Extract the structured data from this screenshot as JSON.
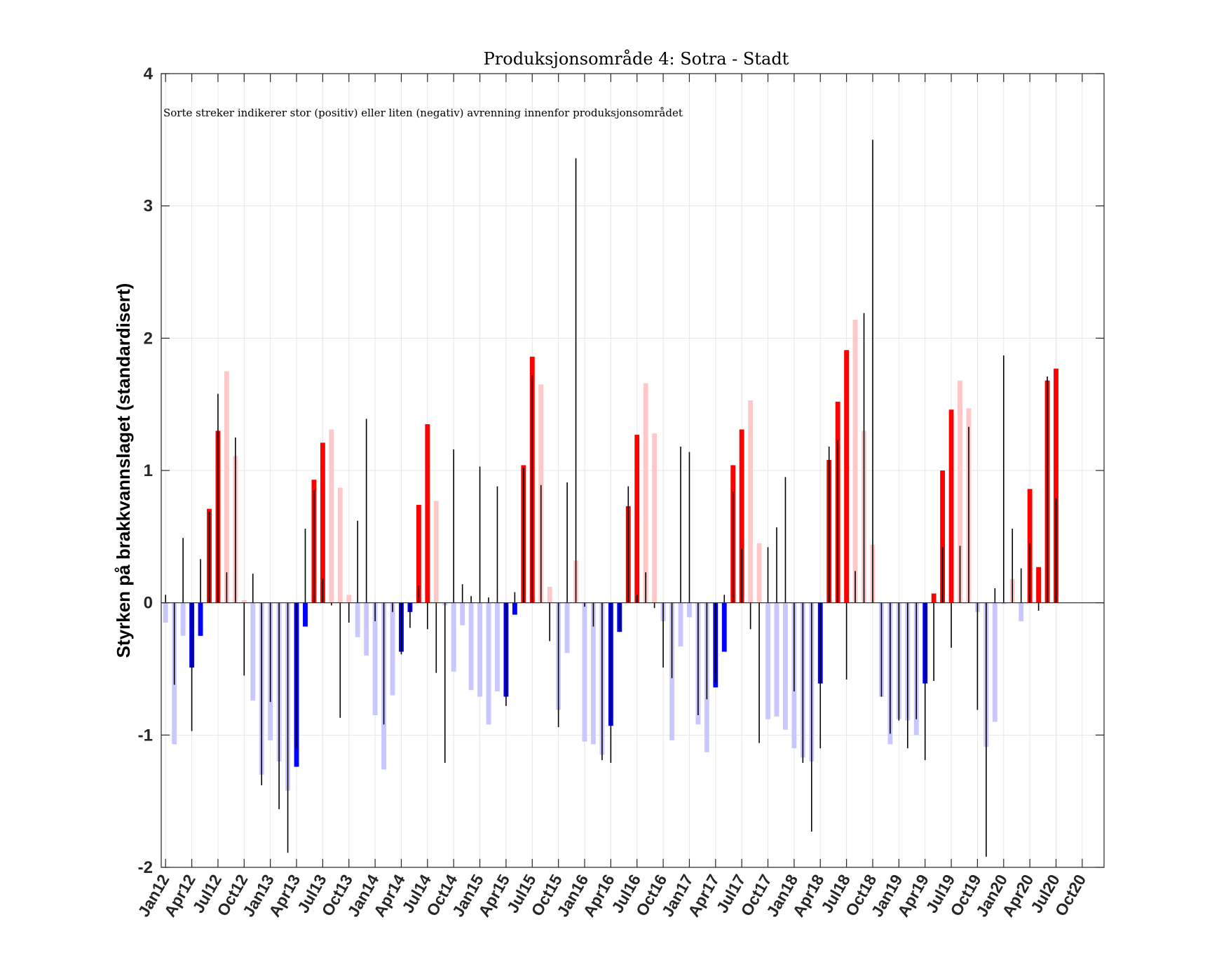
{
  "chart_data": {
    "type": "bar",
    "title": "Produksjonsområde 4: Sotra - Stadt",
    "annotation": "Sorte streker indikerer stor (positiv) eller liten (negativ) avrenning innenfor produksjonsområdet",
    "xlabel": "",
    "ylabel": "Styrken på brakkvannslaget (standardisert)",
    "ylim": [
      -2,
      4
    ],
    "yticks": [
      -2,
      -1,
      0,
      1,
      2,
      3,
      4
    ],
    "xlim_months": [
      -0.5,
      107.5
    ],
    "tick_labels": [
      "Jan12",
      "Apr12",
      "Jul12",
      "Oct12",
      "Jan13",
      "Apr13",
      "Jul13",
      "Oct13",
      "Jan14",
      "Apr14",
      "Jul14",
      "Oct14",
      "Jan15",
      "Apr15",
      "Jul15",
      "Oct15",
      "Jan16",
      "Apr16",
      "Jul16",
      "Oct16",
      "Jan17",
      "Apr17",
      "Jul17",
      "Oct17",
      "Jan18",
      "Apr18",
      "Jul18",
      "Oct18",
      "Jan19",
      "Apr19",
      "Jul19",
      "Oct19",
      "Jan20",
      "Apr20",
      "Jul20",
      "Oct20"
    ],
    "tick_step_months": 3,
    "grid": true,
    "color_legend": {
      "positive_strong": "#ff0000",
      "positive_weak": "#ffc8c8",
      "negative_strong": "#0000ff",
      "negative_weak": "#c8c8ff",
      "runoff_line": "#000000",
      "zero_line": "#262626"
    },
    "series": [
      {
        "name": "Brakkvannslag (standardisert)",
        "values": [
          -0.15,
          -1.07,
          -0.25,
          -0.49,
          -0.25,
          0.71,
          1.3,
          1.75,
          1.11,
          0.02,
          -0.74,
          -1.3,
          -1.04,
          -1.2,
          -1.42,
          -1.24,
          -0.18,
          0.93,
          1.21,
          1.31,
          0.87,
          0.06,
          -0.26,
          -0.4,
          -0.85,
          -1.26,
          -0.7,
          -0.37,
          -0.07,
          0.74,
          1.35,
          0.77,
          -0.02,
          -0.52,
          -0.17,
          -0.66,
          -0.71,
          -0.92,
          -0.67,
          -0.71,
          -0.09,
          1.04,
          1.86,
          1.65,
          0.12,
          -0.81,
          -0.38,
          0.32,
          -1.05,
          -1.07,
          -1.15,
          -0.93,
          -0.22,
          0.73,
          1.27,
          1.66,
          1.28,
          -0.14,
          -1.04,
          -0.33,
          -0.11,
          -0.92,
          -1.13,
          -0.64,
          -0.37,
          1.04,
          1.31,
          1.53,
          0.45,
          -0.88,
          -0.86,
          -0.96,
          -1.1,
          -1.17,
          -1.2,
          -0.61,
          1.08,
          1.52,
          1.91,
          2.14,
          1.3,
          0.44,
          -0.71,
          -1.07,
          -0.88,
          -0.89,
          -1.0,
          -0.61,
          0.07,
          1.0,
          1.46,
          1.68,
          1.47,
          -0.07,
          -1.09,
          -0.9,
          -0.01,
          0.18,
          -0.14,
          0.86,
          0.27,
          1.68,
          1.77,
          null,
          null,
          null,
          null,
          null
        ],
        "intensity": [
          "w",
          "w",
          "w",
          "s",
          "s",
          "s",
          "s",
          "w",
          "w",
          "w",
          "w",
          "w",
          "w",
          "w",
          "w",
          "s",
          "s",
          "s",
          "s",
          "w",
          "w",
          "w",
          "w",
          "w",
          "w",
          "w",
          "w",
          "s",
          "s",
          "s",
          "s",
          "w",
          "w",
          "w",
          "w",
          "w",
          "w",
          "w",
          "w",
          "s",
          "s",
          "s",
          "s",
          "w",
          "w",
          "w",
          "w",
          "w",
          "w",
          "w",
          "w",
          "s",
          "s",
          "s",
          "s",
          "w",
          "w",
          "w",
          "w",
          "w",
          "w",
          "w",
          "w",
          "s",
          "s",
          "s",
          "s",
          "w",
          "w",
          "w",
          "w",
          "w",
          "w",
          "w",
          "w",
          "s",
          "s",
          "s",
          "s",
          "w",
          "w",
          "w",
          "w",
          "w",
          "w",
          "w",
          "w",
          "s",
          "s",
          "s",
          "s",
          "w",
          "w",
          "w",
          "w",
          "w",
          "w",
          "w",
          "w",
          "s",
          "s",
          "s",
          "s",
          "w",
          "w",
          "w",
          "w",
          "w"
        ]
      },
      {
        "name": "Avrenning (sorte streker)",
        "values": [
          0.06,
          -0.62,
          0.49,
          -0.97,
          0.33,
          0.69,
          1.58,
          0.23,
          1.25,
          -0.55,
          0.22,
          -1.38,
          -0.75,
          -1.56,
          -1.89,
          -1.1,
          0.56,
          0.85,
          0.18,
          -0.02,
          -0.87,
          -0.15,
          0.62,
          1.39,
          -0.14,
          -0.92,
          -0.07,
          -0.39,
          -0.19,
          0.13,
          -0.2,
          -0.53,
          -1.21,
          1.16,
          0.14,
          0.05,
          1.03,
          0.04,
          0.88,
          -0.78,
          0.08,
          1.02,
          1.72,
          0.89,
          -0.29,
          -0.94,
          0.91,
          3.36,
          -0.03,
          -0.18,
          -1.19,
          -1.21,
          -0.22,
          0.88,
          0.06,
          0.23,
          -0.04,
          -0.49,
          -0.57,
          1.18,
          1.14,
          -0.85,
          -0.73,
          -0.6,
          0.06,
          0.84,
          0.41,
          -0.2,
          -1.06,
          0.42,
          0.57,
          0.95,
          -0.67,
          -1.21,
          -1.73,
          -1.1,
          1.18,
          1.23,
          -0.58,
          0.24,
          2.19,
          3.5,
          -0.71,
          -0.99,
          -0.89,
          -1.1,
          -0.88,
          -1.19,
          -0.59,
          0.42,
          -0.34,
          0.43,
          1.33,
          -0.81,
          -1.92,
          0.11,
          1.87,
          0.56,
          0.26,
          0.45,
          -0.06,
          1.71,
          0.79,
          null,
          null,
          null,
          null,
          null
        ]
      }
    ]
  }
}
